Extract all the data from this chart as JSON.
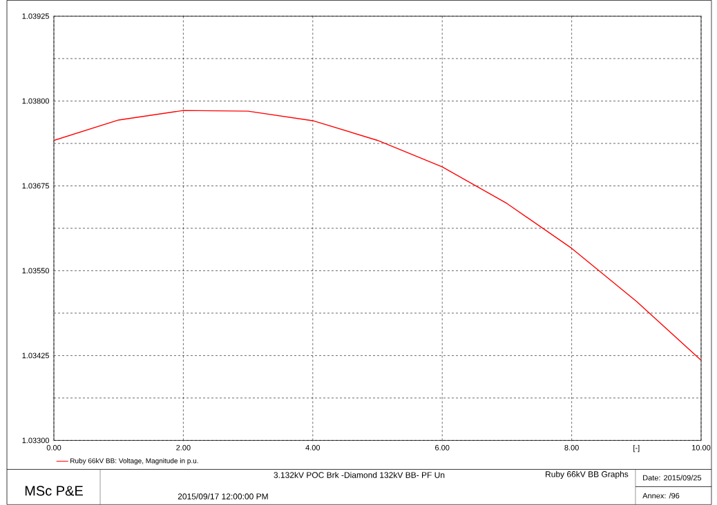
{
  "chart_data": {
    "type": "line",
    "x": [
      0,
      1,
      2,
      3,
      4,
      5,
      6,
      7,
      8,
      9,
      10
    ],
    "series": [
      {
        "name": "Ruby 66kV BB: Voltage, Magnitude in p.u.",
        "color": "#ff0000",
        "values": [
          1.03742,
          1.03772,
          1.03786,
          1.03785,
          1.03771,
          1.03742,
          1.03703,
          1.03649,
          1.03583,
          1.03505,
          1.03418
        ]
      }
    ],
    "xlabel": "[-]",
    "xlim": [
      0,
      10
    ],
    "xticks": [
      {
        "value": 0,
        "label": "0.00"
      },
      {
        "value": 2,
        "label": "2.00"
      },
      {
        "value": 4,
        "label": "4.00"
      },
      {
        "value": 6,
        "label": "6.00"
      },
      {
        "value": 8,
        "label": "8.00"
      },
      {
        "value": 10,
        "label": "10.00"
      }
    ],
    "ylim": [
      1.033,
      1.03925
    ],
    "yticks": [
      {
        "value": 1.033,
        "label": "1.03300"
      },
      {
        "value": 1.033625,
        "label": null
      },
      {
        "value": 1.03425,
        "label": "1.03425"
      },
      {
        "value": 1.034875,
        "label": null
      },
      {
        "value": 1.0355,
        "label": "1.03550"
      },
      {
        "value": 1.036125,
        "label": null
      },
      {
        "value": 1.03675,
        "label": "1.03675"
      },
      {
        "value": 1.037375,
        "label": null
      },
      {
        "value": 1.038,
        "label": "1.03800"
      },
      {
        "value": 1.038625,
        "label": null
      },
      {
        "value": 1.03925,
        "label": "1.03925"
      }
    ],
    "grid": true,
    "legend": "bottom left",
    "line_style": "solid",
    "marker": "none",
    "annotations": [
      "MSc P&E",
      "3.132kV POC Brk -Diamond 132kV BB- PF Un",
      "2015/09/17 12:00:00 PM",
      "Ruby 66kV BB Graphs",
      "Date: 2015/09/25",
      "Annex:  /96"
    ]
  }
}
